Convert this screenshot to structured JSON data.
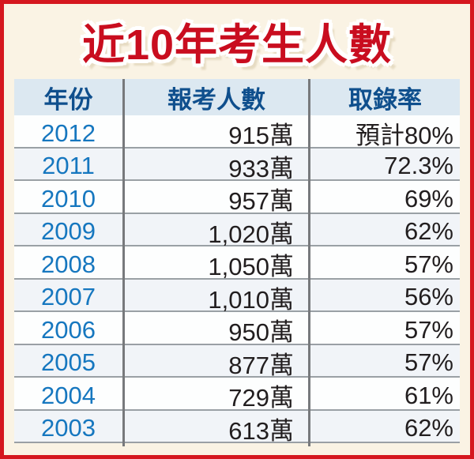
{
  "title": "近10年考生人數",
  "table": {
    "columns": [
      "年份",
      "報考人數",
      "取錄率"
    ],
    "rows": [
      {
        "year": "2012",
        "applicants": "915萬",
        "rate": "預計80%"
      },
      {
        "year": "2011",
        "applicants": "933萬",
        "rate": "72.3%"
      },
      {
        "year": "2010",
        "applicants": "957萬",
        "rate": "69%"
      },
      {
        "year": "2009",
        "applicants": "1,020萬",
        "rate": "62%"
      },
      {
        "year": "2008",
        "applicants": "1,050萬",
        "rate": "57%"
      },
      {
        "year": "2007",
        "applicants": "1,010萬",
        "rate": "56%"
      },
      {
        "year": "2006",
        "applicants": "950萬",
        "rate": "57%"
      },
      {
        "year": "2005",
        "applicants": "877萬",
        "rate": "57%"
      },
      {
        "year": "2004",
        "applicants": "729萬",
        "rate": "61%"
      },
      {
        "year": "2003",
        "applicants": "613萬",
        "rate": "62%"
      }
    ]
  },
  "chart_data": {
    "type": "table",
    "title": "近10年考生人數",
    "columns": [
      "年份",
      "報考人數",
      "取錄率"
    ],
    "rows": [
      [
        "2012",
        "915萬",
        "預計80%"
      ],
      [
        "2011",
        "933萬",
        "72.3%"
      ],
      [
        "2010",
        "957萬",
        "69%"
      ],
      [
        "2009",
        "1,020萬",
        "62%"
      ],
      [
        "2008",
        "1,050萬",
        "57%"
      ],
      [
        "2007",
        "1,010萬",
        "56%"
      ],
      [
        "2006",
        "950萬",
        "57%"
      ],
      [
        "2005",
        "877萬",
        "57%"
      ],
      [
        "2004",
        "729萬",
        "61%"
      ],
      [
        "2003",
        "613萬",
        "62%"
      ]
    ],
    "applicants_wan": [
      915,
      933,
      957,
      1020,
      1050,
      1010,
      950,
      877,
      729,
      613
    ],
    "admission_rate_pct": [
      80,
      72.3,
      69,
      62,
      57,
      56,
      57,
      57,
      61,
      62
    ],
    "notes": "2012 admission rate is an estimate (預計)"
  },
  "colors": {
    "frame_border_red": "#d5171e",
    "title_red": "#c90d1f",
    "background_cream": "#faf3e4",
    "header_bg": "#dce8f1",
    "header_text_blue": "#0f4f8d",
    "year_blue": "#1677bf",
    "value_text": "#221e1f",
    "row_alt_bg": "#f1f4f8",
    "grid_vertical": "#77797c",
    "grid_horizontal": "#9aa0a5"
  }
}
